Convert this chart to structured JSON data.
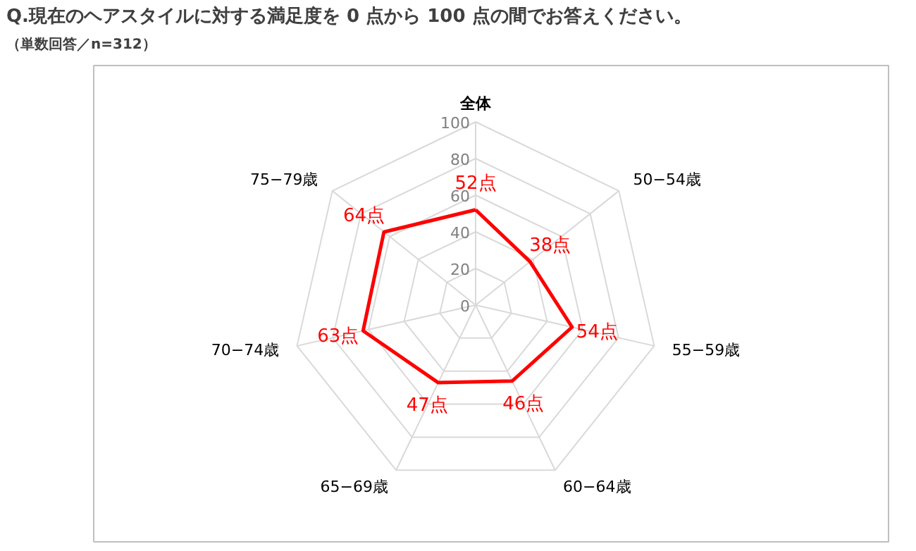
{
  "chart_data": {
    "type": "radar",
    "title": "Q.現在のヘアスタイルに対する満足度を 0 点から 100 点の間でお答えください。",
    "subtitle": "（単数回答／n=312）",
    "categories": [
      "全体",
      "50−54歳",
      "55−59歳",
      "60−64歳",
      "65−69歳",
      "70−74歳",
      "75−79歳"
    ],
    "series": [
      {
        "color": "#ff0000",
        "values": [
          52,
          38,
          54,
          46,
          47,
          63,
          64
        ],
        "value_labels": [
          "52点",
          "38点",
          "54点",
          "46点",
          "47点",
          "63点",
          "64点"
        ]
      }
    ],
    "ylim": [
      0,
      100
    ],
    "yticks": [
      0,
      20,
      40,
      60,
      80,
      100
    ],
    "grid": true
  }
}
